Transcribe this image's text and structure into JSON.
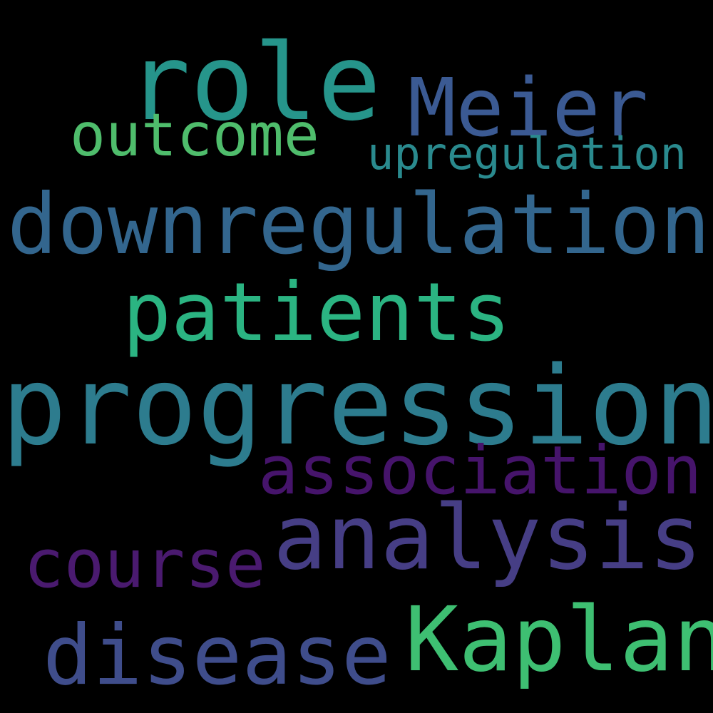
{
  "background": "#000000",
  "words": {
    "role": {
      "text": "role",
      "color": "#26958b"
    },
    "meier": {
      "text": "Meier",
      "color": "#3b5a93"
    },
    "outcome": {
      "text": "outcome",
      "color": "#4fbd6c"
    },
    "upregulation": {
      "text": "upregulation",
      "color": "#2a8a8e"
    },
    "downregulation": {
      "text": "downregulation",
      "color": "#33668e"
    },
    "patients": {
      "text": "patients",
      "color": "#2bb482"
    },
    "progression": {
      "text": "progression",
      "color": "#2d7c8e"
    },
    "association": {
      "text": "association",
      "color": "#46146b"
    },
    "analysis": {
      "text": "analysis",
      "color": "#463e85"
    },
    "course": {
      "text": "course",
      "color": "#4a1a6f"
    },
    "kaplan": {
      "text": "Kaplan",
      "color": "#3ebf72"
    },
    "disease": {
      "text": "disease",
      "color": "#3f4d8b"
    }
  }
}
